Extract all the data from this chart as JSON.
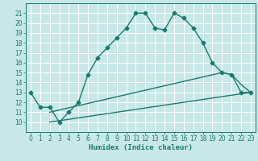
{
  "xlabel": "Humidex (Indice chaleur)",
  "bg_color": "#c8e8e8",
  "grid_color": "#ffffff",
  "line_color": "#1a7a6e",
  "xlim": [
    -0.5,
    23.5
  ],
  "ylim": [
    9,
    22
  ],
  "yticks": [
    10,
    11,
    12,
    13,
    14,
    15,
    16,
    17,
    18,
    19,
    20,
    21
  ],
  "xticks": [
    0,
    1,
    2,
    3,
    4,
    5,
    6,
    7,
    8,
    9,
    10,
    11,
    12,
    13,
    14,
    15,
    16,
    17,
    18,
    19,
    20,
    21,
    22,
    23
  ],
  "curve1_x": [
    0,
    1,
    2,
    3,
    4,
    5,
    6,
    7,
    8,
    9,
    10,
    11,
    12,
    13,
    14,
    15,
    16,
    17,
    18,
    19,
    20,
    21,
    22,
    23
  ],
  "curve1_y": [
    13.0,
    11.5,
    11.5,
    10.0,
    11.0,
    12.0,
    14.8,
    16.5,
    17.5,
    18.5,
    19.5,
    21.0,
    21.0,
    19.5,
    19.3,
    21.0,
    20.5,
    19.5,
    18.0,
    16.0,
    15.0,
    14.8,
    13.0,
    13.0
  ],
  "curve2_x": [
    2,
    23
  ],
  "curve2_y": [
    10.0,
    13.0
  ],
  "curve3_x": [
    2,
    20,
    21,
    22,
    23
  ],
  "curve3_y": [
    11.0,
    15.0,
    14.8,
    13.8,
    13.0
  ],
  "marker": "D",
  "markersize": 2.5,
  "linewidth": 1.0,
  "tick_fontsize": 5.5,
  "xlabel_fontsize": 6.5
}
